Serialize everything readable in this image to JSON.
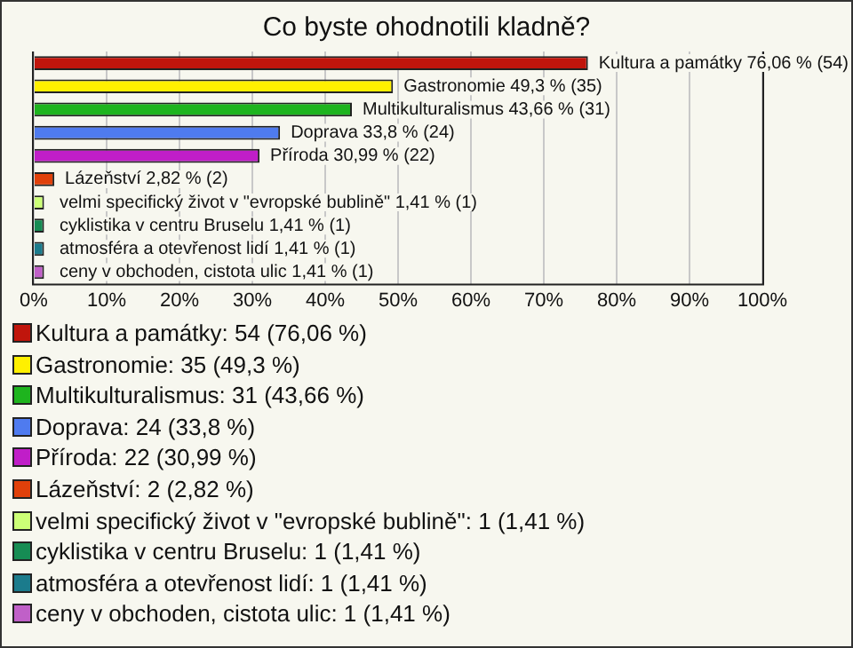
{
  "chart_data": {
    "type": "bar",
    "orientation": "horizontal",
    "title": "Co byste ohodnotili kladně?",
    "categories": [
      null,
      null,
      null,
      null,
      null,
      null,
      null,
      null,
      null,
      null
    ],
    "values": [
      76.06,
      49.3,
      43.66,
      33.8,
      30.99,
      2.82,
      1.41,
      1.41,
      1.41,
      1.41
    ],
    "colors": [
      "#c0150c",
      "#fff000",
      "#1eb41e",
      "#4f7bef",
      "#c01ec8",
      "#e0400a",
      "#ccff77",
      "#168c54",
      "#1b7b8c",
      "#c060c8"
    ],
    "value_labels": [
      "Kultura a památky 76,06 % (54)",
      "Gastronomie 49,3 % (35)",
      "Multikulturalismus 43,66 % (31)",
      "Doprava 33,8 % (24)",
      "Příroda 30,99 % (22)",
      "Lázeňství 2,82 % (2)",
      "velmi specifický život v \"evropské bublině\" 1,41 % (1)",
      "cyklistika v centru Bruselu 1,41 % (1)",
      "atmosféra a otevřenost lidí 1,41 % (1)",
      "ceny v obchoden, cistota ulic 1,41 % (1)"
    ],
    "xlim": [
      0,
      100
    ],
    "xticks": [
      {
        "value": 0,
        "label": "0%"
      },
      {
        "value": 10,
        "label": "10%"
      },
      {
        "value": 20,
        "label": "20%"
      },
      {
        "value": 30,
        "label": "30%"
      },
      {
        "value": 40,
        "label": "40%"
      },
      {
        "value": 50,
        "label": "50%"
      },
      {
        "value": 60,
        "label": "60%"
      },
      {
        "value": 70,
        "label": "70%"
      },
      {
        "value": 80,
        "label": "80%"
      },
      {
        "value": 90,
        "label": "90%"
      },
      {
        "value": 100,
        "label": "100%"
      }
    ],
    "tick_labels": "x",
    "grid": "x",
    "annotations": [
      "Kultura a památky: 54 (76,06 %)",
      "Gastronomie: 35 (49,3 %)",
      "Multikulturalismus: 31 (43,66 %)",
      "Doprava: 24 (33,8 %)",
      "Příroda: 22 (30,99 %)",
      "Lázeňství: 2 (2,82 %)",
      "velmi specifický život v \"evropské bublině\": 1 (1,41 %)",
      "cyklistika v centru Bruselu: 1 (1,41 %)",
      "atmosféra a otevřenost lidí: 1 (1,41 %)",
      "ceny v obchoden, cistota ulic: 1 (1,41 %)"
    ]
  }
}
